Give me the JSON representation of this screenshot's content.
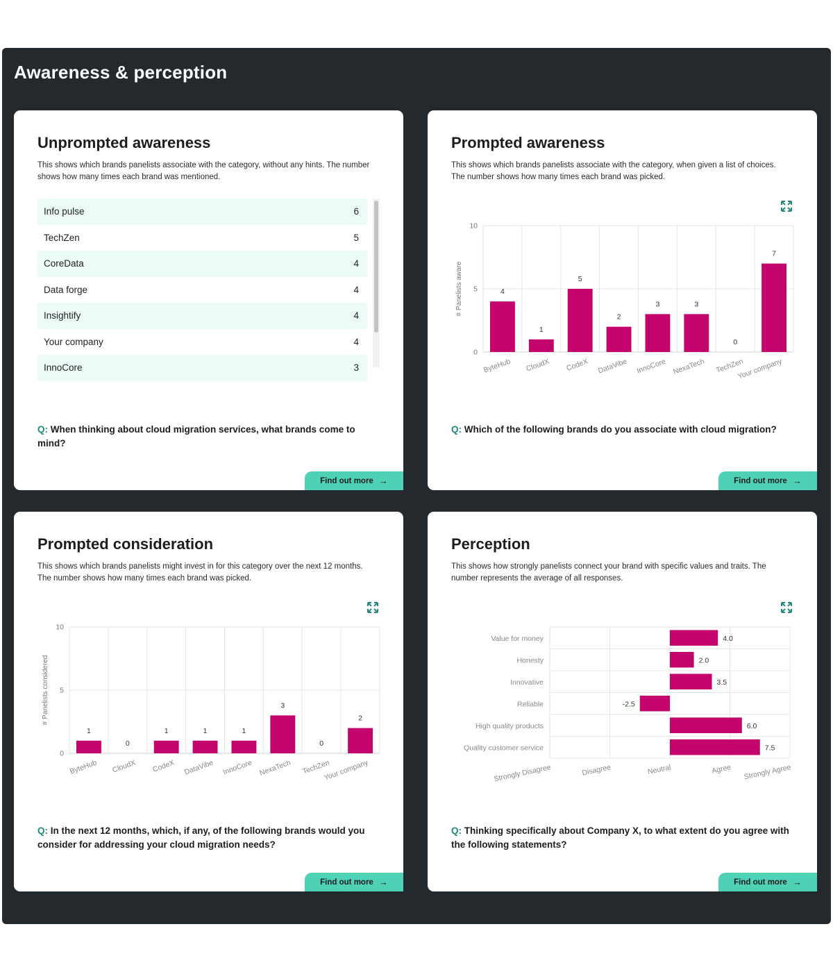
{
  "page": {
    "title": "Awareness & perception"
  },
  "unprompted": {
    "title": "Unprompted awareness",
    "description": "This shows which brands panelists associate with the category, without any hints. The number shows how many times each brand was mentioned.",
    "items": [
      {
        "label": "Info pulse",
        "count": "6"
      },
      {
        "label": "TechZen",
        "count": "5"
      },
      {
        "label": "CoreData",
        "count": "4"
      },
      {
        "label": "Data forge",
        "count": "4"
      },
      {
        "label": "Insightify",
        "count": "4"
      },
      {
        "label": "Your company",
        "count": "4"
      },
      {
        "label": "InnoCore",
        "count": "3"
      }
    ],
    "question_prefix": "Q:",
    "question": "When thinking about cloud migration services, what brands come to mind?",
    "button": "Find out more"
  },
  "prompted_awareness": {
    "title": "Prompted awareness",
    "description": "This shows which brands panelists associate with the category, when given a list of choices. The number shows how many times each brand was picked.",
    "question_prefix": "Q:",
    "question": "Which of the following brands do you associate with cloud migration?",
    "button": "Find out more"
  },
  "prompted_consideration": {
    "title": "Prompted consideration",
    "description": "This shows which brands panelists might invest in for this category over the next 12 months. The number shows how many times each brand was picked.",
    "question_prefix": "Q:",
    "question": "In the next 12 months, which, if any, of the following brands would you consider for addressing your cloud migration needs?",
    "button": "Find out more"
  },
  "perception": {
    "title": "Perception",
    "description": "This shows how strongly panelists connect your brand with specific values and traits. The number represents the average of all responses.",
    "question_prefix": "Q:",
    "question": "Thinking specifically about Company X, to what extent do you agree with the following statements?",
    "button": "Find out more"
  },
  "chart_data": [
    {
      "id": "prompted_awareness",
      "type": "bar",
      "categories": [
        "ByteHub",
        "CloudX",
        "CodeX",
        "DataVibe",
        "InnoCore",
        "NexaTech",
        "TechZen",
        "Your company"
      ],
      "values": [
        4,
        1,
        5,
        2,
        3,
        3,
        0,
        7
      ],
      "ylabel": "# Panelists aware",
      "ylim": [
        0,
        10
      ],
      "yticks": [
        "0",
        "5",
        "10"
      ],
      "grid": true,
      "bar_color": "#c4046d"
    },
    {
      "id": "prompted_consideration",
      "type": "bar",
      "categories": [
        "ByteHub",
        "CloudX",
        "CodeX",
        "DataVibe",
        "InnoCore",
        "NexaTech",
        "TechZen",
        "Your company"
      ],
      "values": [
        1,
        0,
        1,
        1,
        1,
        3,
        0,
        2
      ],
      "ylabel": "# Panelists considered",
      "ylim": [
        0,
        10
      ],
      "yticks": [
        "0",
        "5",
        "10"
      ],
      "grid": true,
      "bar_color": "#c4046d"
    },
    {
      "id": "perception",
      "type": "bar",
      "orientation": "horizontal",
      "categories": [
        "Value for money",
        "Honesty",
        "Innovative",
        "Reliable",
        "High quality products",
        "Quality customer service"
      ],
      "values": [
        4.0,
        2.0,
        3.5,
        -2.5,
        6.0,
        7.5
      ],
      "value_labels": [
        "4.0",
        "2.0",
        "3.5",
        "-2.5",
        "6.0",
        "7.5"
      ],
      "xlim": [
        -10,
        10
      ],
      "xticks": [
        "Strongly Disagree",
        "Disagree",
        "Neutral",
        "Agree",
        "Strongly Agree"
      ],
      "grid": true,
      "bar_color": "#c4046d"
    }
  ]
}
